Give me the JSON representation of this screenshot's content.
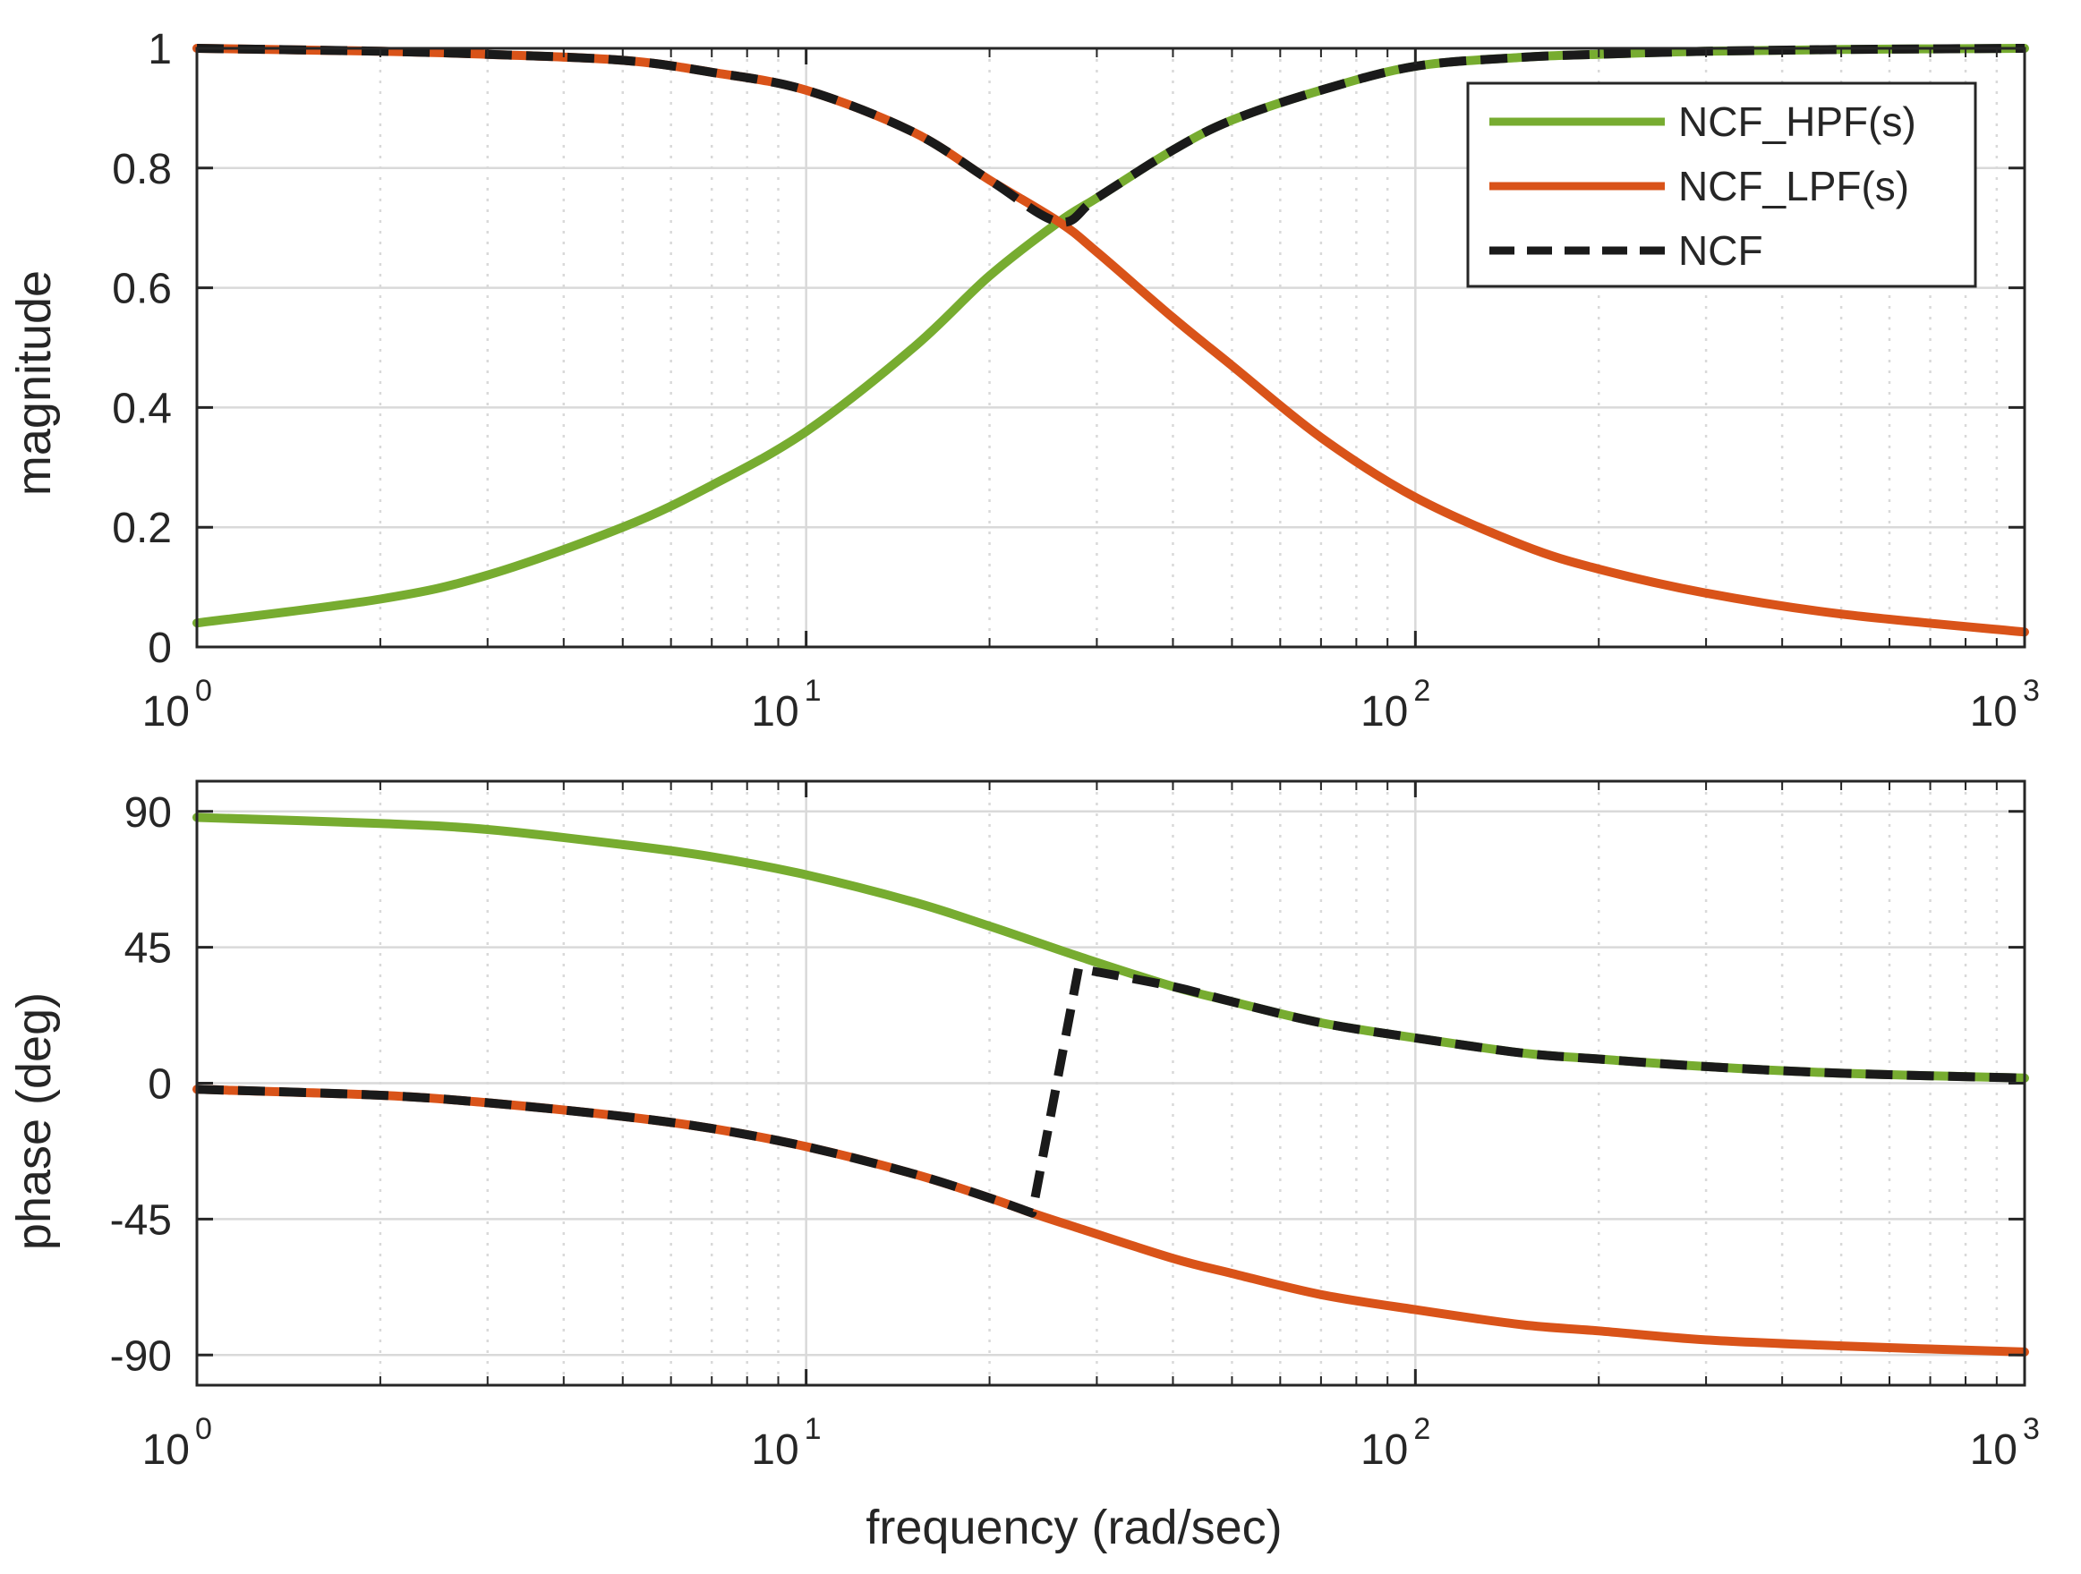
{
  "colors": {
    "hpf": "#77AC30",
    "lpf": "#D95319",
    "ncf": "#1a1a1a",
    "grid": "#d9d9d9",
    "axis": "#262626"
  },
  "legend": {
    "placement": "top-right of magnitude plot",
    "items": [
      {
        "key": "hpf",
        "label": "NCF_HPF(s)",
        "style": "solid"
      },
      {
        "key": "lpf",
        "label": "NCF_LPF(s)",
        "style": "solid"
      },
      {
        "key": "ncf",
        "label": "NCF",
        "style": "dashed"
      }
    ]
  },
  "chart_data": [
    {
      "id": "magnitude",
      "type": "line",
      "xscale": "log",
      "xlim": [
        1,
        1000
      ],
      "ylim": [
        0,
        1
      ],
      "ylabel": "magnitude",
      "xlabel": "",
      "grid": true,
      "x_ticks": [
        {
          "base": "10",
          "exp": "0",
          "value": 1
        },
        {
          "base": "10",
          "exp": "1",
          "value": 10
        },
        {
          "base": "10",
          "exp": "2",
          "value": 100
        },
        {
          "base": "10",
          "exp": "3",
          "value": 1000
        }
      ],
      "y_ticks": [
        {
          "label": "0",
          "value": 0
        },
        {
          "label": "0.2",
          "value": 0.2
        },
        {
          "label": "0.4",
          "value": 0.4
        },
        {
          "label": "0.6",
          "value": 0.6
        },
        {
          "label": "0.8",
          "value": 0.8
        },
        {
          "label": "1",
          "value": 1
        }
      ],
      "series": [
        {
          "key": "hpf",
          "name": "NCF_HPF(s)",
          "x": [
            1,
            2,
            3,
            5,
            7,
            10,
            15,
            20,
            26,
            30,
            40,
            50,
            70,
            100,
            150,
            200,
            300,
            500,
            1000
          ],
          "y": [
            0.04,
            0.08,
            0.12,
            0.2,
            0.27,
            0.36,
            0.5,
            0.62,
            0.71,
            0.75,
            0.83,
            0.88,
            0.93,
            0.97,
            0.985,
            0.99,
            0.995,
            0.998,
            1.0
          ]
        },
        {
          "key": "lpf",
          "name": "NCF_LPF(s)",
          "x": [
            1,
            2,
            3,
            5,
            7,
            10,
            15,
            20,
            26,
            30,
            40,
            50,
            70,
            100,
            150,
            200,
            300,
            500,
            1000
          ],
          "y": [
            1.0,
            0.995,
            0.99,
            0.98,
            0.96,
            0.93,
            0.86,
            0.78,
            0.71,
            0.66,
            0.55,
            0.47,
            0.35,
            0.25,
            0.17,
            0.13,
            0.09,
            0.055,
            0.025
          ]
        },
        {
          "key": "ncf",
          "name": "NCF",
          "dashed": true,
          "x": [
            1,
            2,
            3,
            5,
            7,
            10,
            15,
            20,
            26,
            30,
            40,
            50,
            70,
            100,
            150,
            200,
            300,
            500,
            1000
          ],
          "y": [
            1.0,
            0.995,
            0.99,
            0.98,
            0.96,
            0.93,
            0.86,
            0.78,
            0.71,
            0.75,
            0.83,
            0.88,
            0.93,
            0.97,
            0.985,
            0.99,
            0.995,
            0.998,
            1.0
          ]
        }
      ]
    },
    {
      "id": "phase",
      "type": "line",
      "xscale": "log",
      "xlim": [
        1,
        1000
      ],
      "ylim": [
        -100,
        100
      ],
      "ylabel": "phase (deg)",
      "xlabel": "frequency (rad/sec)",
      "grid": true,
      "x_ticks": [
        {
          "base": "10",
          "exp": "0",
          "value": 1
        },
        {
          "base": "10",
          "exp": "1",
          "value": 10
        },
        {
          "base": "10",
          "exp": "2",
          "value": 100
        },
        {
          "base": "10",
          "exp": "3",
          "value": 1000
        }
      ],
      "y_ticks": [
        {
          "label": "-90",
          "value": -90
        },
        {
          "label": "-45",
          "value": -45
        },
        {
          "label": "0",
          "value": 0
        },
        {
          "label": "45",
          "value": 45
        },
        {
          "label": "90",
          "value": 90
        }
      ],
      "series": [
        {
          "key": "hpf",
          "name": "NCF_HPF(s)",
          "x": [
            1,
            2,
            3,
            5,
            7,
            10,
            15,
            20,
            28,
            40,
            50,
            70,
            100,
            150,
            200,
            300,
            500,
            1000
          ],
          "y": [
            88,
            86,
            84,
            79,
            75,
            69,
            60,
            52,
            42,
            32,
            27,
            20,
            15,
            10,
            8,
            5.5,
            3.3,
            1.7
          ]
        },
        {
          "key": "lpf",
          "name": "NCF_LPF(s)",
          "x": [
            1,
            2,
            3,
            5,
            7,
            10,
            15,
            20,
            23.5,
            28,
            40,
            50,
            70,
            100,
            150,
            200,
            300,
            500,
            1000
          ],
          "y": [
            -2,
            -4,
            -6.5,
            -11,
            -15,
            -21,
            -30,
            -38,
            -43,
            -48,
            -58,
            -63,
            -70,
            -75,
            -80,
            -82,
            -85,
            -87,
            -89
          ]
        },
        {
          "key": "ncf",
          "name": "NCF",
          "dashed": true,
          "x": [
            1,
            2,
            3,
            5,
            7,
            10,
            15,
            20,
            23.5,
            28,
            40,
            50,
            70,
            100,
            150,
            200,
            300,
            500,
            1000
          ],
          "y": [
            -2,
            -4,
            -6.5,
            -11,
            -15,
            -21,
            -30,
            -38,
            -43,
            38,
            32,
            27,
            20,
            15,
            10,
            8,
            5.5,
            3.3,
            1.7
          ]
        }
      ]
    }
  ]
}
